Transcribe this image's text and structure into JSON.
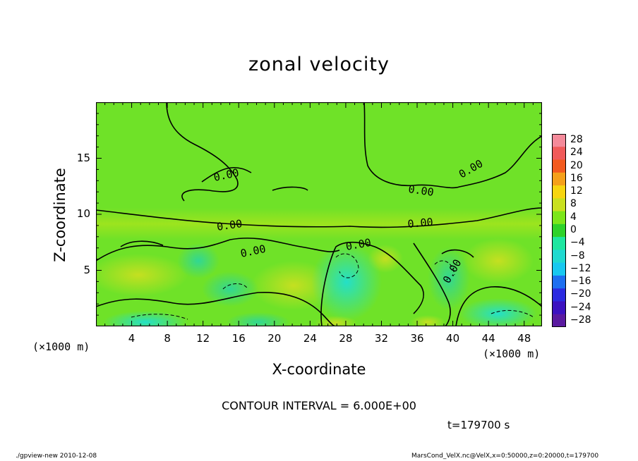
{
  "chart_data": {
    "type": "heatmap",
    "title": "zonal velocity",
    "xlabel": "X-coordinate",
    "ylabel": "Z-coordinate",
    "x_unit": "(×1000 m)",
    "x_unit_right": "(×1000 m)",
    "x_ticks": [
      "4",
      "8",
      "12",
      "16",
      "20",
      "24",
      "28",
      "32",
      "36",
      "40",
      "44",
      "48"
    ],
    "y_ticks": [
      "5",
      "10",
      "15"
    ],
    "xlim": [
      0,
      50
    ],
    "ylim": [
      0,
      20
    ],
    "colorbar_labels": [
      "28",
      "24",
      "20",
      "16",
      "12",
      "8",
      "4",
      "0",
      "−4",
      "−8",
      "−12",
      "−16",
      "−20",
      "−24",
      "−28"
    ],
    "colorbar_colors": [
      "#f48a9a",
      "#f05a5a",
      "#f35a1e",
      "#f5a01a",
      "#f7d510",
      "#c9e020",
      "#7ce61a",
      "#2ed22a",
      "#1ee6a0",
      "#20d9d0",
      "#18c8f0",
      "#1d6ff0",
      "#2b2ae0",
      "#3c12c0",
      "#5a1aa0"
    ],
    "contour_label": "0.00",
    "contour_interval": "CONTOUR INTERVAL = 6.000E+00",
    "time": "t=179700 s",
    "footer_left": "./gpview-new  2010-12-08",
    "footer_right": "MarsCond_VelX.nc@VelX,x=0:50000,z=0:20000,t=179700"
  }
}
